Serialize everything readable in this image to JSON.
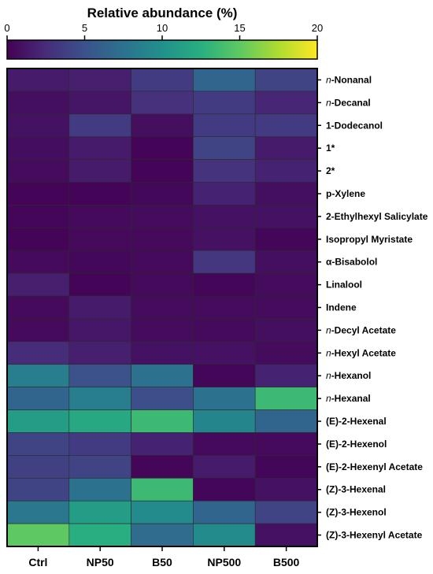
{
  "chart_data": {
    "type": "heatmap",
    "title": "Relative abundance (%)",
    "colorbar": {
      "min": 0,
      "max": 20,
      "ticks": [
        0,
        5,
        10,
        15,
        20
      ],
      "colormap": "viridis",
      "position": "top"
    },
    "columns": [
      "Ctrl",
      "NP50",
      "B50",
      "NP500",
      "B500"
    ],
    "rows": [
      {
        "label": "n-Nonanal",
        "prefix": "n",
        "name": "-Nonanal"
      },
      {
        "label": "n-Decanal",
        "prefix": "n",
        "name": "-Decanal"
      },
      {
        "label": "1-Dodecanol"
      },
      {
        "label": "1*"
      },
      {
        "label": "2*"
      },
      {
        "label": "p-Xylene"
      },
      {
        "label": "2-Ethylhexyl Salicylate"
      },
      {
        "label": "Isopropyl Myristate"
      },
      {
        "label": "α-Bisabolol"
      },
      {
        "label": "Linalool"
      },
      {
        "label": "Indene"
      },
      {
        "label": "n-Decyl Acetate",
        "prefix": "n",
        "name": "-Decyl Acetate"
      },
      {
        "label": "n-Hexyl Acetate",
        "prefix": "n",
        "name": "-Hexyl Acetate"
      },
      {
        "label": "n-Hexanol",
        "prefix": "n",
        "name": "-Hexanol"
      },
      {
        "label": "n-Hexanal",
        "prefix": "n",
        "name": "-Hexanal"
      },
      {
        "label": "(E)-2-Hexenal"
      },
      {
        "label": "(E)-2-Hexenol"
      },
      {
        "label": "(E)-2-Hexenyl Acetate"
      },
      {
        "label": "(Z)-3-Hexenal"
      },
      {
        "label": "(Z)-3-Hexenol"
      },
      {
        "label": "(Z)-3-Hexenyl Acetate"
      }
    ],
    "values": [
      [
        1.5,
        1.8,
        3.5,
        6.5,
        4.0
      ],
      [
        0.8,
        1.2,
        2.8,
        3.5,
        2.2
      ],
      [
        1.0,
        3.5,
        0.8,
        3.5,
        3.5
      ],
      [
        0.7,
        1.5,
        0.2,
        4.0,
        1.5
      ],
      [
        0.6,
        1.5,
        0.2,
        3.0,
        2.0
      ],
      [
        0.2,
        0.2,
        0.4,
        2.0,
        0.8
      ],
      [
        0.3,
        0.5,
        0.6,
        1.0,
        1.0
      ],
      [
        0.2,
        0.5,
        0.5,
        1.0,
        0.3
      ],
      [
        0.5,
        0.4,
        0.5,
        3.2,
        0.8
      ],
      [
        1.8,
        0.2,
        0.5,
        0.3,
        0.6
      ],
      [
        0.5,
        1.5,
        0.6,
        0.6,
        0.6
      ],
      [
        0.5,
        1.3,
        0.6,
        0.5,
        0.8
      ],
      [
        2.5,
        1.8,
        1.0,
        1.0,
        0.6
      ],
      [
        8.5,
        5.0,
        7.5,
        0.3,
        2.0
      ],
      [
        6.5,
        8.5,
        4.8,
        7.5,
        13.5
      ],
      [
        11.0,
        12.0,
        13.5,
        9.0,
        6.5
      ],
      [
        4.0,
        3.5,
        2.0,
        0.5,
        0.5
      ],
      [
        3.8,
        4.0,
        0.3,
        1.5,
        0.3
      ],
      [
        4.0,
        7.5,
        13.5,
        0.3,
        1.0
      ],
      [
        8.0,
        11.0,
        9.5,
        6.5,
        4.0
      ],
      [
        15.0,
        12.5,
        7.0,
        9.5,
        1.0
      ]
    ]
  }
}
